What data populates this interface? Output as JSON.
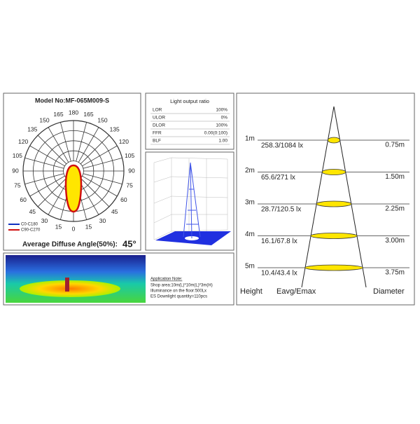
{
  "model": "Model No:MF-065M009-S",
  "polar": {
    "angle_labels": [
      "0",
      "15",
      "30",
      "45",
      "60",
      "75",
      "90",
      "105",
      "120",
      "135",
      "150",
      "165",
      "180"
    ],
    "legend": [
      "C0-C180",
      "C90-C270"
    ],
    "diffuse_label": "Average Diffuse Angle(50%):",
    "diffuse_value": "45°"
  },
  "ratio": {
    "title": "Light output ratio",
    "rows": [
      [
        "LOR",
        "100%"
      ],
      [
        "ULOR",
        "0%"
      ],
      [
        "DLOR",
        "100%"
      ],
      [
        "FFR",
        "0.00(0:100)"
      ],
      [
        "BLF",
        "1.00"
      ]
    ]
  },
  "application": {
    "title": "Application Note:",
    "lines": [
      "Shop area:10m(L)*10m(L)*3m(H)",
      "Illuminance on the floor:500Lx",
      "ES Downlight quantity=110pcs"
    ]
  },
  "illuminance": {
    "rows": [
      {
        "height": "1m",
        "value": "258.3/1084 lx",
        "diameter": "0.75m"
      },
      {
        "height": "2m",
        "value": "65.6/271 lx",
        "diameter": "1.50m"
      },
      {
        "height": "3m",
        "value": "28.7/120.5 lx",
        "diameter": "2.25m"
      },
      {
        "height": "4m",
        "value": "16.1/67.8 lx",
        "diameter": "3.00m"
      },
      {
        "height": "5m",
        "value": "10.4/43.4 lx",
        "diameter": "3.75m"
      }
    ],
    "headers": [
      "Height",
      "Eavg/Emax",
      "Diameter"
    ]
  }
}
